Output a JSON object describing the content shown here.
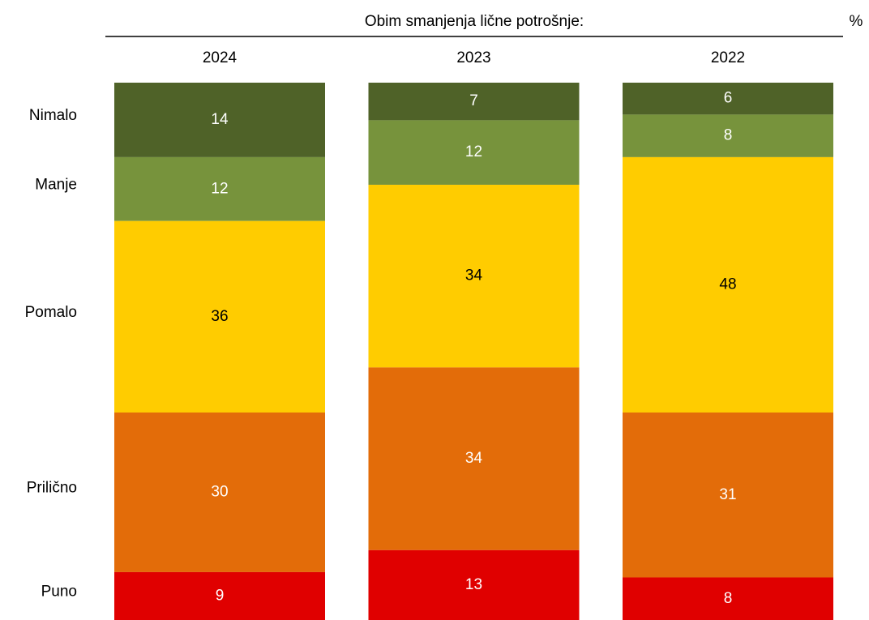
{
  "chart_data": {
    "type": "bar",
    "stacked": "percent",
    "title": "Obim smanjenja lične potrošnje:",
    "unit": "%",
    "categories": [
      "2024",
      "2023",
      "2022"
    ],
    "series": [
      {
        "name": "Nimalo",
        "color": "#4f6228",
        "label_color": "#ffffff",
        "values": [
          14,
          7,
          6
        ]
      },
      {
        "name": "Manje",
        "color": "#77933c",
        "label_color": "#ffffff",
        "values": [
          12,
          12,
          8
        ]
      },
      {
        "name": "Pomalo",
        "color": "#ffcc00",
        "label_color": "#000000",
        "values": [
          36,
          34,
          48
        ]
      },
      {
        "name": "Prilično",
        "color": "#e36c09",
        "label_color": "#ffffff",
        "values": [
          30,
          34,
          31
        ]
      },
      {
        "name": "Puno",
        "color": "#e00000",
        "label_color": "#ffffff",
        "values": [
          9,
          13,
          8
        ]
      }
    ]
  }
}
